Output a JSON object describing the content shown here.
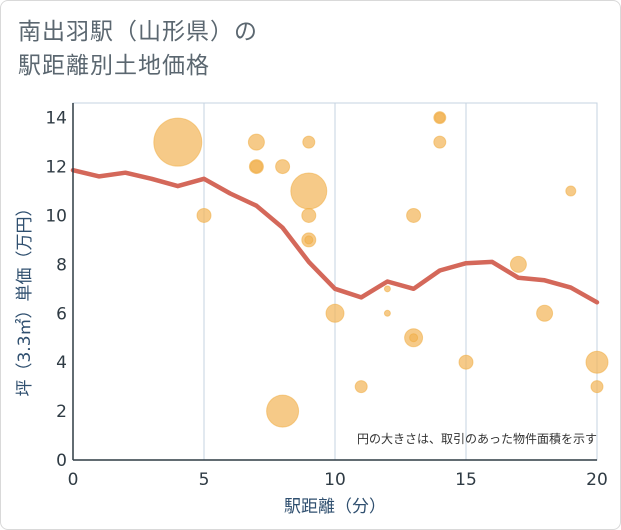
{
  "title_lines": [
    "南出羽駅（山形県）の",
    "駅距離別土地価格"
  ],
  "note": "円の大きさは、取引のあった物件面積を示す",
  "colors": {
    "line": "#d4685a",
    "bubble_fill": "#f2b455",
    "bubble_stroke": "#efa93a",
    "grid": "#c5d3e0",
    "axis": "#2f3b44",
    "bg": "#ffffff"
  },
  "chart_data": {
    "type": "scatter",
    "xlabel": "駅距離（分）",
    "ylabel": "坪（3.3㎡）単価（万円）",
    "xlim": [
      0,
      20
    ],
    "ylim": [
      0,
      14.6
    ],
    "xticks": [
      0,
      5,
      10,
      15,
      20
    ],
    "yticks": [
      0,
      2,
      4,
      6,
      8,
      10,
      12,
      14
    ],
    "grid": true,
    "series": [
      {
        "kind": "line",
        "points": [
          [
            0,
            11.85
          ],
          [
            1,
            11.6
          ],
          [
            2,
            11.75
          ],
          [
            3,
            11.5
          ],
          [
            4,
            11.2
          ],
          [
            5,
            11.5
          ],
          [
            6,
            10.9
          ],
          [
            7,
            10.4
          ],
          [
            8,
            9.5
          ],
          [
            9,
            8.1
          ],
          [
            10,
            7.0
          ],
          [
            11,
            6.65
          ],
          [
            12,
            7.3
          ],
          [
            13,
            7.0
          ],
          [
            14,
            7.75
          ],
          [
            15,
            8.05
          ],
          [
            16,
            8.1
          ],
          [
            17,
            7.45
          ],
          [
            18,
            7.35
          ],
          [
            19,
            7.05
          ],
          [
            20,
            6.45
          ]
        ]
      },
      {
        "kind": "bubble",
        "points": [
          {
            "x": 4,
            "y": 13,
            "size": 24
          },
          {
            "x": 5,
            "y": 10,
            "size": 7
          },
          {
            "x": 7,
            "y": 13,
            "size": 8
          },
          {
            "x": 7,
            "y": 12,
            "size": 7
          },
          {
            "x": 7,
            "y": 12,
            "size": 6
          },
          {
            "x": 8,
            "y": 12,
            "size": 7
          },
          {
            "x": 8,
            "y": 2,
            "size": 16
          },
          {
            "x": 9,
            "y": 13,
            "size": 6
          },
          {
            "x": 9,
            "y": 11,
            "size": 18
          },
          {
            "x": 9,
            "y": 10,
            "size": 7
          },
          {
            "x": 9,
            "y": 9,
            "size": 7
          },
          {
            "x": 9,
            "y": 9,
            "size": 4
          },
          {
            "x": 10,
            "y": 6,
            "size": 9
          },
          {
            "x": 11,
            "y": 3,
            "size": 6
          },
          {
            "x": 12,
            "y": 7,
            "size": 3
          },
          {
            "x": 12,
            "y": 6,
            "size": 3
          },
          {
            "x": 13,
            "y": 10,
            "size": 7
          },
          {
            "x": 13,
            "y": 5,
            "size": 9
          },
          {
            "x": 13,
            "y": 5,
            "size": 4
          },
          {
            "x": 14,
            "y": 14,
            "size": 6
          },
          {
            "x": 14,
            "y": 14,
            "size": 5
          },
          {
            "x": 14,
            "y": 13,
            "size": 6
          },
          {
            "x": 15,
            "y": 4,
            "size": 7
          },
          {
            "x": 17,
            "y": 8,
            "size": 8
          },
          {
            "x": 18,
            "y": 6,
            "size": 8
          },
          {
            "x": 19,
            "y": 11,
            "size": 5
          },
          {
            "x": 20,
            "y": 4,
            "size": 11
          },
          {
            "x": 20,
            "y": 3,
            "size": 6
          }
        ]
      }
    ]
  }
}
